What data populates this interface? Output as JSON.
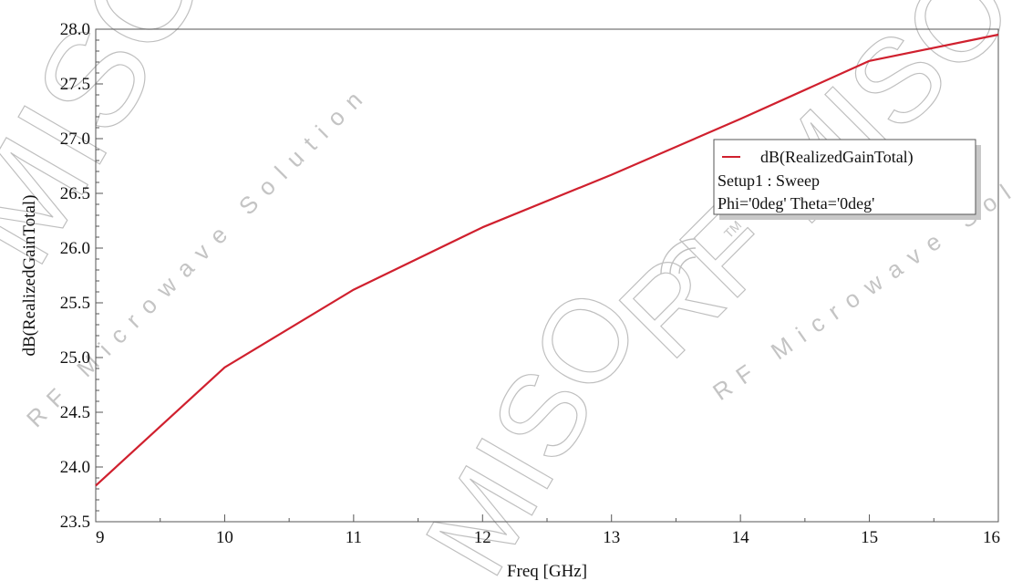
{
  "colors": {
    "series": "#d0202e",
    "axis": "#555555",
    "background": "#ffffff"
  },
  "chart_data": {
    "type": "line",
    "title": "",
    "xlabel": "Freq [GHz]",
    "ylabel": "dB(RealizedGainTotal)",
    "xlim": [
      9,
      16
    ],
    "ylim": [
      23.5,
      28.0
    ],
    "xticks": [
      "9",
      "10",
      "11",
      "12",
      "13",
      "14",
      "15",
      "16"
    ],
    "yticks": [
      "28.0",
      "27.5",
      "27.0",
      "26.5",
      "26.0",
      "25.5",
      "25.0",
      "24.5",
      "24.0",
      "23.5"
    ],
    "grid": false,
    "legend_position": "upper-right",
    "series": [
      {
        "name": "dB(RealizedGainTotal)",
        "color": "#d0202e",
        "x": [
          9,
          10,
          11,
          12,
          13,
          14,
          15,
          16
        ],
        "y": [
          23.83,
          24.91,
          25.62,
          26.19,
          26.67,
          27.18,
          27.71,
          27.95
        ]
      }
    ],
    "legend": {
      "entry": "dB(RealizedGainTotal)",
      "line2": "Setup1 : Sweep",
      "line3": "Phi='0deg' Theta='0deg'"
    }
  },
  "watermark": {
    "brand": "MISO",
    "brand_full": "RF MISO",
    "tagline": "RF Microwave Solution",
    "tm": "TM"
  }
}
